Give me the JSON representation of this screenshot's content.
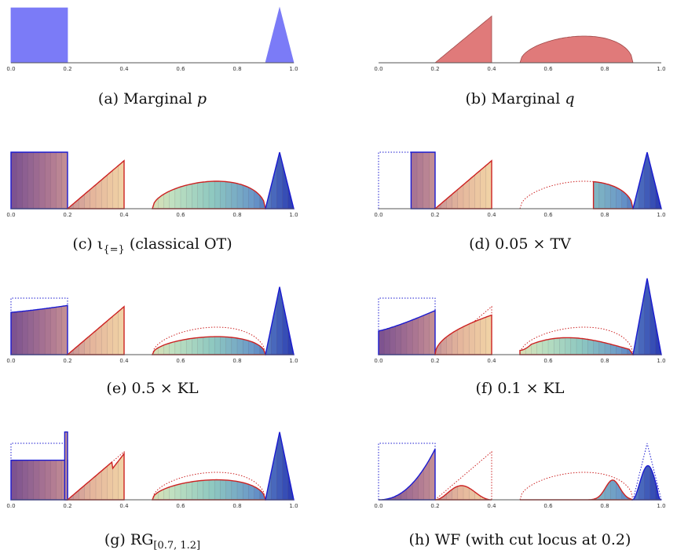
{
  "colors": {
    "p_fill": "#7b7bf7",
    "q_fill": "#e07a7a",
    "p_line": "#1a1ad0",
    "q_line": "#cc2222",
    "axis": "#555555",
    "spectrum": [
      "#7a5090",
      "#b07a92",
      "#e4b59c",
      "#f5dca8",
      "#bfe0c0",
      "#8ec8c0",
      "#6a98c8",
      "#2a3ab0"
    ]
  },
  "chart_data": [
    {
      "type": "area",
      "panel": "a",
      "caption": "(a) Marginal p",
      "caption_parts": [
        "(a) Marginal ",
        "p"
      ],
      "xlim": [
        0,
        1
      ],
      "x_ticks": [
        "0.0",
        "0.2",
        "0.4",
        "0.6",
        "0.8",
        "1.0"
      ],
      "series": [
        {
          "role": "p",
          "shape": "box",
          "x": [
            0.0,
            0.2
          ],
          "height": 1.0
        },
        {
          "role": "p",
          "shape": "triangle",
          "x": [
            0.9,
            0.95,
            1.0
          ],
          "height": 1.0
        }
      ]
    },
    {
      "type": "area",
      "panel": "b",
      "caption": "(b) Marginal q",
      "caption_parts": [
        "(b) Marginal ",
        "q"
      ],
      "xlim": [
        0,
        1
      ],
      "x_ticks": [
        "0.0",
        "0.2",
        "0.4",
        "0.6",
        "0.8",
        "1.0"
      ],
      "series": [
        {
          "role": "q",
          "shape": "ramp",
          "x": [
            0.2,
            0.4
          ],
          "height": 0.85
        },
        {
          "role": "q",
          "shape": "arc",
          "x": [
            0.5,
            0.9
          ],
          "height": 0.55
        }
      ]
    },
    {
      "type": "area",
      "panel": "c",
      "caption": "(c) ι{=} (classical OT)",
      "caption_parts": [
        "(c) ι",
        "{=}",
        " (classical OT)"
      ],
      "xlim": [
        0,
        1
      ],
      "x_ticks": [
        "0.0",
        "0.2",
        "0.4",
        "0.6",
        "0.8",
        "1.0"
      ],
      "series": [
        {
          "role": "p",
          "shape": "box",
          "x": [
            0.0,
            0.2
          ],
          "height": 1.0
        },
        {
          "role": "q",
          "shape": "ramp",
          "x": [
            0.2,
            0.4
          ],
          "height": 0.85
        },
        {
          "role": "q",
          "shape": "arc",
          "x": [
            0.5,
            0.9
          ],
          "height": 0.55
        },
        {
          "role": "p",
          "shape": "triangle",
          "x": [
            0.9,
            0.95,
            1.0
          ],
          "height": 1.0
        }
      ]
    },
    {
      "type": "area",
      "panel": "d",
      "caption": "(d) 0.05 × TV",
      "caption_parts": [
        "(d) 0.05 × TV"
      ],
      "xlim": [
        0,
        1
      ],
      "x_ticks": [
        "0.0",
        "0.2",
        "0.4",
        "0.6",
        "0.8",
        "1.0"
      ],
      "series": [
        {
          "role": "p",
          "shape": "box",
          "x": [
            0.0,
            0.2
          ],
          "height": 1.0,
          "style": "dotted"
        },
        {
          "role": "p",
          "shape": "box",
          "x": [
            0.115,
            0.2
          ],
          "height": 1.0
        },
        {
          "role": "q",
          "shape": "ramp",
          "x": [
            0.2,
            0.4
          ],
          "height": 0.85
        },
        {
          "role": "q",
          "shape": "arc",
          "x": [
            0.5,
            0.9
          ],
          "height": 0.55,
          "style": "dotted"
        },
        {
          "role": "q",
          "shape": "arc",
          "x": [
            0.5,
            0.9
          ],
          "height": 0.55,
          "clip": [
            0.76,
            0.9
          ]
        },
        {
          "role": "p",
          "shape": "triangle",
          "x": [
            0.9,
            0.95,
            1.0
          ],
          "height": 1.0
        }
      ]
    },
    {
      "type": "area",
      "panel": "e",
      "caption": "(e) 0.5 × KL",
      "caption_parts": [
        "(e) 0.5 × KL"
      ],
      "xlim": [
        0,
        1
      ],
      "x_ticks": [
        "0.0",
        "0.2",
        "0.4",
        "0.6",
        "0.8",
        "1.0"
      ],
      "series": [
        {
          "role": "p",
          "shape": "box",
          "x": [
            0.0,
            0.2
          ],
          "height": 1.0,
          "style": "dotted"
        },
        {
          "role": "p",
          "shape": "slope",
          "x": [
            0.0,
            0.2
          ],
          "heights": [
            0.75,
            0.87
          ]
        },
        {
          "role": "q",
          "shape": "ramp",
          "x": [
            0.2,
            0.4
          ],
          "height": 0.85
        },
        {
          "role": "q",
          "shape": "arc",
          "x": [
            0.5,
            0.9
          ],
          "height": 0.55,
          "style": "dotted"
        },
        {
          "role": "q",
          "shape": "arc",
          "x": [
            0.5,
            0.9
          ],
          "height": 0.36
        },
        {
          "role": "p",
          "shape": "triangle",
          "x": [
            0.9,
            0.95,
            1.0
          ],
          "height": 1.2
        }
      ]
    },
    {
      "type": "area",
      "panel": "f",
      "caption": "(f) 0.1 × KL",
      "caption_parts": [
        "(f) 0.1 × KL"
      ],
      "xlim": [
        0,
        1
      ],
      "x_ticks": [
        "0.0",
        "0.2",
        "0.4",
        "0.6",
        "0.8",
        "1.0"
      ],
      "series": [
        {
          "role": "p",
          "shape": "box",
          "x": [
            0.0,
            0.2
          ],
          "height": 1.0,
          "style": "dotted"
        },
        {
          "role": "p",
          "shape": "slope",
          "x": [
            0.0,
            0.2
          ],
          "heights": [
            0.42,
            0.78
          ]
        },
        {
          "role": "q",
          "shape": "ramp",
          "x": [
            0.2,
            0.4
          ],
          "height": 0.85,
          "style": "dotted"
        },
        {
          "role": "q",
          "shape": "rise",
          "x": [
            0.2,
            0.4
          ],
          "height": 0.7
        },
        {
          "role": "q",
          "shape": "arc",
          "x": [
            0.5,
            0.9
          ],
          "height": 0.55,
          "style": "dotted"
        },
        {
          "role": "q",
          "shape": "lowarc",
          "x": [
            0.5,
            0.9
          ],
          "height": 0.3
        },
        {
          "role": "p",
          "shape": "triangle",
          "x": [
            0.9,
            0.95,
            1.0
          ],
          "height": 1.35
        }
      ]
    },
    {
      "type": "area",
      "panel": "g",
      "caption": "(g) RG[0.7, 1.2]",
      "caption_parts": [
        "(g) RG",
        "[0.7, 1.2]"
      ],
      "xlim": [
        0,
        1
      ],
      "x_ticks": [
        "0.0",
        "0.2",
        "0.4",
        "0.6",
        "0.8",
        "1.0"
      ],
      "series": [
        {
          "role": "p",
          "shape": "box",
          "x": [
            0.0,
            0.2
          ],
          "height": 1.0,
          "style": "dotted"
        },
        {
          "role": "p",
          "shape": "box",
          "x": [
            0.0,
            0.2
          ],
          "height": 0.7
        },
        {
          "role": "p",
          "shape": "spike",
          "x": [
            0.19,
            0.2
          ],
          "height": 1.2
        },
        {
          "role": "q",
          "shape": "ramp",
          "x": [
            0.2,
            0.4
          ],
          "height": 0.85,
          "style": "dotted"
        },
        {
          "role": "q",
          "shape": "notchramp",
          "x": [
            0.2,
            0.4
          ],
          "height": 0.85
        },
        {
          "role": "q",
          "shape": "arc",
          "x": [
            0.5,
            0.9
          ],
          "height": 0.55,
          "style": "dotted"
        },
        {
          "role": "q",
          "shape": "arc",
          "x": [
            0.5,
            0.9
          ],
          "height": 0.4
        },
        {
          "role": "p",
          "shape": "triangle",
          "x": [
            0.9,
            0.95,
            1.0
          ],
          "height": 1.2
        }
      ]
    },
    {
      "type": "area",
      "panel": "h",
      "caption": "(h) WF (with cut locus at 0.2)",
      "caption_parts": [
        "(h) WF (with cut locus at 0.2)"
      ],
      "xlim": [
        0,
        1
      ],
      "x_ticks": [
        "0.0",
        "0.2",
        "0.4",
        "0.6",
        "0.8",
        "1.0"
      ],
      "series": [
        {
          "role": "p",
          "shape": "box",
          "x": [
            0.0,
            0.2
          ],
          "height": 1.0,
          "style": "dotted"
        },
        {
          "role": "p",
          "shape": "convex",
          "x": [
            0.0,
            0.2
          ],
          "height": 0.9
        },
        {
          "role": "q",
          "shape": "ramp",
          "x": [
            0.2,
            0.4
          ],
          "height": 0.85,
          "style": "dotted"
        },
        {
          "role": "q",
          "shape": "bump",
          "x": [
            0.2,
            0.4
          ],
          "height": 0.33
        },
        {
          "role": "q",
          "shape": "arc",
          "x": [
            0.5,
            0.9
          ],
          "height": 0.55,
          "style": "dotted"
        },
        {
          "role": "q",
          "shape": "tailbump",
          "x": [
            0.5,
            0.9
          ],
          "height": 0.35
        },
        {
          "role": "p",
          "shape": "triangle",
          "x": [
            0.9,
            0.95,
            1.0
          ],
          "height": 1.0,
          "style": "dotted"
        },
        {
          "role": "p",
          "shape": "hump",
          "x": [
            0.9,
            1.0
          ],
          "height": 0.6
        }
      ]
    }
  ]
}
